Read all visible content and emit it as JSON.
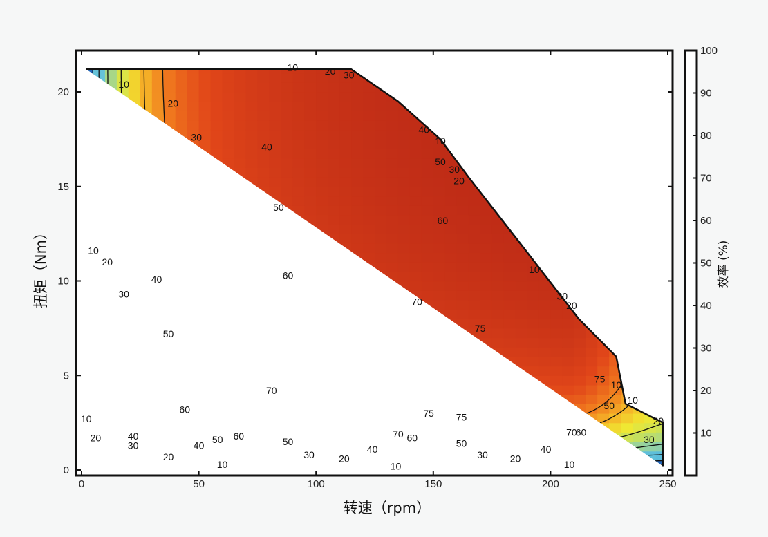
{
  "chart_data": {
    "type": "heatmap",
    "title": "",
    "xlabel": "转速（rpm）",
    "ylabel": "扭矩（Nm）",
    "xlim": [
      0,
      250
    ],
    "ylim": [
      0,
      22
    ],
    "x_ticks": [
      "0",
      "50",
      "100",
      "150",
      "200",
      "250"
    ],
    "y_ticks": [
      "0",
      "5",
      "10",
      "15",
      "20"
    ],
    "colorbar": {
      "label": "效率 (%)",
      "range": [
        0,
        100
      ],
      "ticks": [
        "10",
        "20",
        "30",
        "40",
        "50",
        "60",
        "70",
        "80",
        "90",
        "100"
      ]
    },
    "grid": false,
    "contour_levels": [
      10,
      20,
      30,
      40,
      50,
      60,
      70,
      75
    ],
    "max_torque_envelope": [
      [
        2,
        21.2
      ],
      [
        115,
        21.2
      ],
      [
        135,
        19.5
      ],
      [
        153,
        17.5
      ],
      [
        165,
        15.5
      ],
      [
        187,
        12.0
      ],
      [
        212,
        8.0
      ],
      [
        228,
        6.0
      ],
      [
        232,
        3.5
      ],
      [
        248,
        2.5
      ],
      [
        248,
        0.2
      ]
    ],
    "contour_labels": [
      {
        "level": "10",
        "x": 18,
        "y": 20.4
      },
      {
        "level": "20",
        "x": 39,
        "y": 19.4
      },
      {
        "level": "30",
        "x": 49,
        "y": 17.6
      },
      {
        "level": "40",
        "x": 79,
        "y": 17.1
      },
      {
        "level": "50",
        "x": 84,
        "y": 13.9
      },
      {
        "level": "60",
        "x": 154,
        "y": 13.2
      },
      {
        "level": "10",
        "x": 90,
        "y": 21.3
      },
      {
        "level": "20",
        "x": 106,
        "y": 21.1
      },
      {
        "level": "30",
        "x": 114,
        "y": 20.9
      },
      {
        "level": "40",
        "x": 146,
        "y": 18.0
      },
      {
        "level": "10",
        "x": 153,
        "y": 17.4
      },
      {
        "level": "50",
        "x": 153,
        "y": 16.3
      },
      {
        "level": "30",
        "x": 159,
        "y": 15.9
      },
      {
        "level": "20",
        "x": 161,
        "y": 15.3
      },
      {
        "level": "10",
        "x": 193,
        "y": 10.6
      },
      {
        "level": "30",
        "x": 205,
        "y": 9.2
      },
      {
        "level": "20",
        "x": 209,
        "y": 8.7
      },
      {
        "level": "10",
        "x": 5,
        "y": 11.6
      },
      {
        "level": "20",
        "x": 11,
        "y": 11.0
      },
      {
        "level": "30",
        "x": 18,
        "y": 9.3
      },
      {
        "level": "40",
        "x": 32,
        "y": 10.1
      },
      {
        "level": "60",
        "x": 88,
        "y": 10.3
      },
      {
        "level": "50",
        "x": 37,
        "y": 7.2
      },
      {
        "level": "70",
        "x": 143,
        "y": 8.9
      },
      {
        "level": "75",
        "x": 170,
        "y": 7.5
      },
      {
        "level": "70",
        "x": 81,
        "y": 4.2
      },
      {
        "level": "60",
        "x": 44,
        "y": 3.2
      },
      {
        "level": "75",
        "x": 148,
        "y": 3.0
      },
      {
        "level": "75",
        "x": 162,
        "y": 2.8
      },
      {
        "level": "75",
        "x": 221,
        "y": 4.8
      },
      {
        "level": "10",
        "x": 228,
        "y": 4.5
      },
      {
        "level": "50",
        "x": 225,
        "y": 3.4
      },
      {
        "level": "10",
        "x": 235,
        "y": 3.7
      },
      {
        "level": "20",
        "x": 246,
        "y": 2.6
      },
      {
        "level": "30",
        "x": 242,
        "y": 1.6
      },
      {
        "level": "10",
        "x": 2,
        "y": 2.7
      },
      {
        "level": "20",
        "x": 6,
        "y": 1.7
      },
      {
        "level": "40",
        "x": 22,
        "y": 1.8
      },
      {
        "level": "30",
        "x": 22,
        "y": 1.3
      },
      {
        "level": "20",
        "x": 37,
        "y": 0.7
      },
      {
        "level": "10",
        "x": 60,
        "y": 0.3
      },
      {
        "level": "40",
        "x": 50,
        "y": 1.3
      },
      {
        "level": "50",
        "x": 58,
        "y": 1.6
      },
      {
        "level": "60",
        "x": 67,
        "y": 1.8
      },
      {
        "level": "50",
        "x": 88,
        "y": 1.5
      },
      {
        "level": "40",
        "x": 124,
        "y": 1.1
      },
      {
        "level": "30",
        "x": 97,
        "y": 0.8
      },
      {
        "level": "20",
        "x": 112,
        "y": 0.6
      },
      {
        "level": "10",
        "x": 134,
        "y": 0.2
      },
      {
        "level": "70",
        "x": 135,
        "y": 1.9
      },
      {
        "level": "60",
        "x": 141,
        "y": 1.7
      },
      {
        "level": "50",
        "x": 162,
        "y": 1.4
      },
      {
        "level": "30",
        "x": 171,
        "y": 0.8
      },
      {
        "level": "20",
        "x": 185,
        "y": 0.6
      },
      {
        "level": "40",
        "x": 198,
        "y": 1.1
      },
      {
        "level": "10",
        "x": 208,
        "y": 0.3
      },
      {
        "level": "70",
        "x": 209,
        "y": 2.0
      },
      {
        "level": "60",
        "x": 213,
        "y": 2.0
      }
    ]
  }
}
